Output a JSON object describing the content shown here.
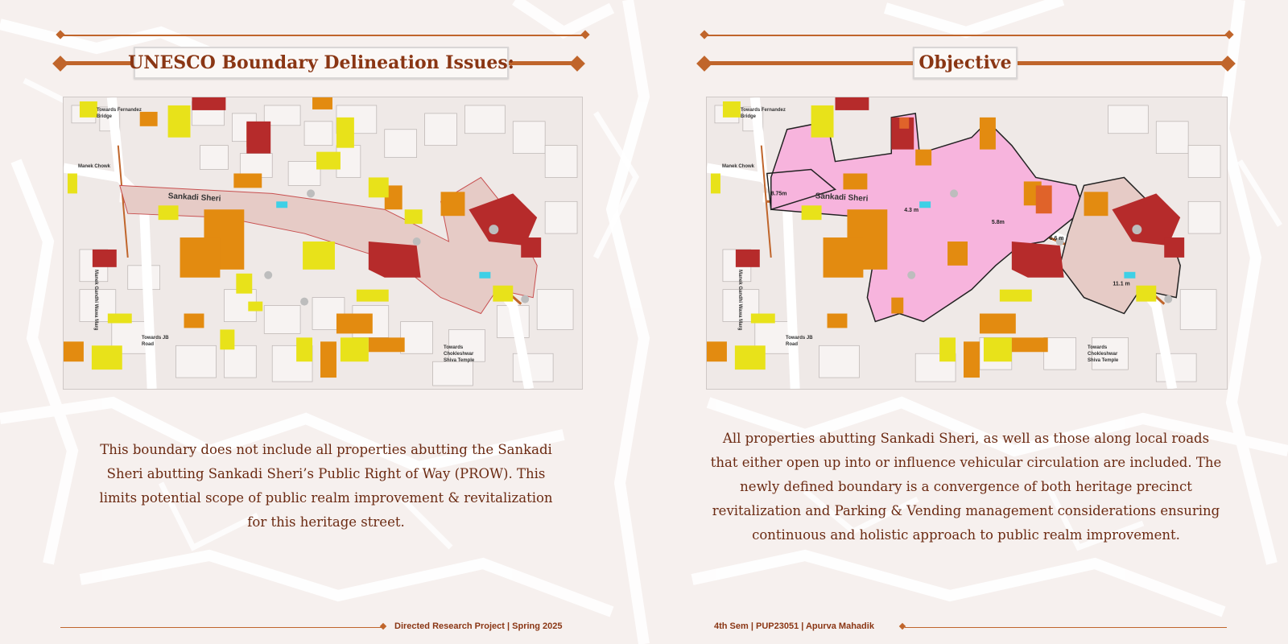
{
  "left": {
    "title": "UNESCO Boundary Delineation Issues:",
    "body": "This boundary does not include all properties abutting the Sankadi Sheri abutting Sankadi Sheri’s Public Right of Way (PROW). This limits potential scope of public realm improvement & revitalization for this heritage street.",
    "map_labels": {
      "street": "Sankadi Sheri",
      "towards_bridge": "Towards Fernandez Bridge",
      "manek_chowk": "Manek Chowk",
      "road_vertical": "Manek Gandhi Wawa Marg",
      "towards_road": "Towards JB Road",
      "towards_temple": "Towards Chokleshwar Shiva Temple"
    }
  },
  "right": {
    "title": "Objective",
    "body": "All properties abutting Sankadi Sheri, as well as those along local roads that either open up into or influence vehicular circulation are included. The newly defined boundary is a convergence of both heritage precinct revitalization and Parking & Vending management considerations ensuring continuous and holistic approach to public realm improvement.",
    "map_labels": {
      "street": "Sankadi Sheri",
      "towards_bridge": "Towards Fernandez Bridge",
      "manek_chowk": "Manek Chowk",
      "road_vertical": "Manek Gandhi Wawa Marg",
      "towards_road": "Towards JB Road",
      "towards_temple": "Towards Chokleshwar Shiva Temple",
      "width_1": "8.75m",
      "width_2": "4.3 m",
      "width_3": "5.8m",
      "width_4": "6.6 m",
      "width_5": "11.1 m"
    }
  },
  "footer": {
    "left": "Directed Research Project | Spring 2025",
    "right": "4th Sem | PUP23051 | Apurva Mahadik"
  },
  "colors": {
    "accent": "#c0652b",
    "title_text": "#8a3614",
    "body_text": "#6b2a12",
    "grade_yellow": "#e8e21a",
    "grade_orange": "#e38b10",
    "grade_red": "#b62b2b",
    "boundary_pink": "#f7b4dd"
  }
}
